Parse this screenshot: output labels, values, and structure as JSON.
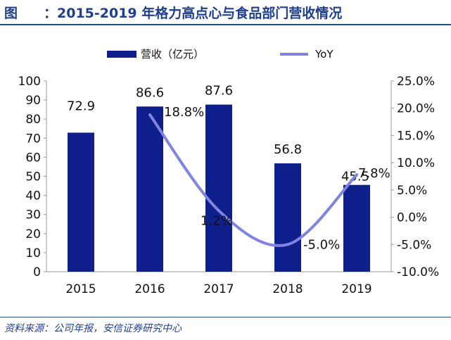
{
  "header": {
    "prefix": "图",
    "title": "：2015-2019 年格力高点心与食品部门营收情况"
  },
  "source": "资料来源：公司年报，安信证券研究中心",
  "colors": {
    "bar": "#0f1f8c",
    "line": "#8084e0",
    "title": "#1f3f8f"
  },
  "chart_data": {
    "type": "bar",
    "categories": [
      "2015",
      "2016",
      "2017",
      "2018",
      "2019"
    ],
    "series": [
      {
        "name": "营收（亿元）",
        "type": "bar",
        "axis": "left",
        "values": [
          72.9,
          86.6,
          87.6,
          56.8,
          45.5
        ],
        "labels": [
          "72.9",
          "86.6",
          "87.6",
          "56.8",
          "45.5"
        ]
      },
      {
        "name": "YoY",
        "type": "line",
        "axis": "right",
        "smooth": true,
        "x": [
          "2016",
          "2017",
          "2018",
          "2019"
        ],
        "values": [
          18.8,
          1.2,
          -5.0,
          7.8
        ],
        "labels": [
          "18.8%",
          "1.2%",
          "-5.0%",
          "7.8%"
        ]
      }
    ],
    "y_left": {
      "min": 0,
      "max": 100,
      "step": 10,
      "ticks": [
        "0",
        "10",
        "20",
        "30",
        "40",
        "50",
        "60",
        "70",
        "80",
        "90",
        "100"
      ]
    },
    "y_right": {
      "min": -10,
      "max": 25,
      "step": 5,
      "ticks": [
        "-10.0%",
        "-5.0%",
        "0.0%",
        "5.0%",
        "10.0%",
        "15.0%",
        "20.0%",
        "25.0%"
      ]
    },
    "legend": {
      "position": "top",
      "items": [
        "营收（亿元）",
        "YoY"
      ]
    },
    "grid": false
  }
}
